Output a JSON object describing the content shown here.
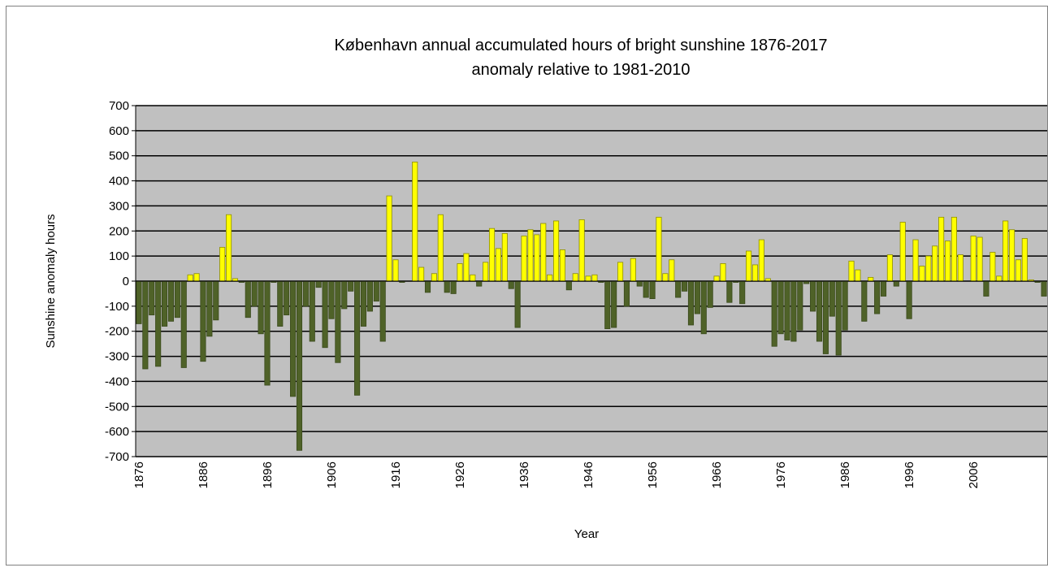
{
  "chart_data": {
    "type": "bar",
    "title": "København annual accumulated hours of bright sunshine 1876-2017",
    "subtitle": "anomaly relative to 1981-2010",
    "x_label": "Year",
    "y_label": "Sunshine  anomaly hours",
    "categories": [
      "1876",
      null,
      null,
      null,
      null,
      null,
      null,
      null,
      null,
      null,
      "1886",
      null,
      null,
      null,
      null,
      null,
      null,
      null,
      null,
      null,
      "1896",
      null,
      null,
      null,
      null,
      null,
      null,
      null,
      null,
      null,
      "1906",
      null,
      null,
      null,
      null,
      null,
      null,
      null,
      null,
      null,
      "1916",
      null,
      null,
      null,
      null,
      null,
      null,
      null,
      null,
      null,
      "1926",
      null,
      null,
      null,
      null,
      null,
      null,
      null,
      null,
      null,
      "1936",
      null,
      null,
      null,
      null,
      null,
      null,
      null,
      null,
      null,
      "1946",
      null,
      null,
      null,
      null,
      null,
      null,
      null,
      null,
      null,
      "1956",
      null,
      null,
      null,
      null,
      null,
      null,
      null,
      null,
      null,
      "1966",
      null,
      null,
      null,
      null,
      null,
      null,
      null,
      null,
      null,
      "1976",
      null,
      null,
      null,
      null,
      null,
      null,
      null,
      null,
      null,
      "1986",
      null,
      null,
      null,
      null,
      null,
      null,
      null,
      null,
      null,
      "1996",
      null,
      null,
      null,
      null,
      null,
      null,
      null,
      null,
      null,
      "2006",
      null,
      null,
      null,
      null,
      null,
      null,
      null,
      null,
      null,
      null,
      null
    ],
    "values": [
      -170,
      -350,
      -135,
      -340,
      -180,
      -160,
      -145,
      -345,
      25,
      30,
      -320,
      -220,
      -155,
      135,
      265,
      10,
      -5,
      -145,
      -100,
      -210,
      -415,
      -5,
      -180,
      -135,
      -460,
      -675,
      -100,
      -240,
      -25,
      -265,
      -150,
      -325,
      -110,
      -40,
      -455,
      -180,
      -120,
      -80,
      -240,
      340,
      85,
      -5,
      0,
      475,
      55,
      -45,
      30,
      265,
      -45,
      -50,
      70,
      110,
      25,
      -20,
      75,
      210,
      130,
      190,
      -30,
      -185,
      180,
      205,
      185,
      230,
      25,
      240,
      125,
      -35,
      30,
      245,
      20,
      25,
      -5,
      -190,
      -185,
      75,
      -100,
      90,
      -20,
      -65,
      -70,
      255,
      30,
      85,
      -65,
      -40,
      -175,
      -130,
      -210,
      -105,
      20,
      70,
      -85,
      -5,
      -90,
      120,
      65,
      165,
      10,
      -260,
      -210,
      -235,
      -240,
      -195,
      -10,
      -120,
      -240,
      -290,
      -140,
      -295,
      -195,
      80,
      45,
      -160,
      15,
      -130,
      -60,
      105,
      -20,
      235,
      -150,
      165,
      60,
      100,
      140,
      255,
      160,
      255,
      105,
      0,
      180,
      175,
      -60,
      115,
      20,
      240,
      205,
      85,
      170,
      5,
      -5,
      -60
    ],
    "positive_color": "#ffff00",
    "negative_color": "#4f6228",
    "ylim": [
      -700,
      700
    ],
    "yticks": [
      -700,
      -600,
      -500,
      -400,
      -300,
      -200,
      -100,
      0,
      100,
      200,
      300,
      400,
      500,
      600,
      700
    ],
    "grid": true
  }
}
